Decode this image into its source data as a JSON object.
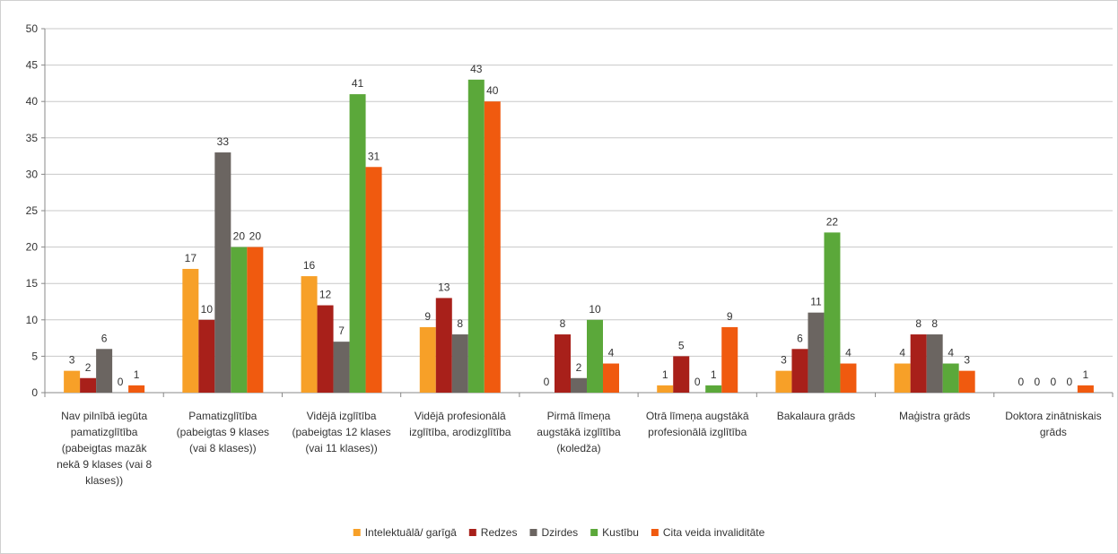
{
  "chart_data": {
    "type": "bar",
    "title": "",
    "xlabel": "",
    "ylabel": "",
    "ylim": [
      0,
      50
    ],
    "yticks": [
      0,
      5,
      10,
      15,
      20,
      25,
      30,
      35,
      40,
      45,
      50
    ],
    "grid": true,
    "legend_position": "bottom",
    "categories": [
      [
        "Nav pilnībā iegūta",
        "pamatizglītība",
        "(pabeigtas mazāk",
        "nekā 9 klases (vai 8",
        "klases))"
      ],
      [
        "Pamatizglītība",
        "(pabeigtas 9 klases",
        "(vai 8 klases))"
      ],
      [
        "Vidējā izglītība",
        "(pabeigtas 12 klases",
        "(vai 11 klases))"
      ],
      [
        "Vidējā profesionālā",
        "izglītība, arodizglītība"
      ],
      [
        "Pirmā līmeņa",
        "augstākā izglītība",
        "(koledža)"
      ],
      [
        "Otrā līmeņa augstākā",
        "profesionālā izglītība"
      ],
      [
        "Bakalaura grāds"
      ],
      [
        "Maģistra grāds"
      ],
      [
        "Doktora zinātniskais",
        "grāds"
      ]
    ],
    "series": [
      {
        "name": "Intelektuālā/ garīgā",
        "color": "#F7A028",
        "values": [
          3,
          17,
          16,
          9,
          0,
          1,
          3,
          4,
          0
        ]
      },
      {
        "name": "Redzes",
        "color": "#A8201A",
        "values": [
          2,
          10,
          12,
          13,
          8,
          5,
          6,
          8,
          0
        ]
      },
      {
        "name": "Dzirdes",
        "color": "#6B6561",
        "values": [
          6,
          33,
          7,
          8,
          2,
          0,
          11,
          8,
          0
        ]
      },
      {
        "name": "Kustību",
        "color": "#5BA83A",
        "values": [
          0,
          20,
          41,
          43,
          10,
          1,
          22,
          4,
          0
        ]
      },
      {
        "name": "Cita veida invaliditāte",
        "color": "#F05A0F",
        "values": [
          1,
          20,
          31,
          40,
          4,
          9,
          4,
          3,
          1
        ]
      }
    ]
  }
}
